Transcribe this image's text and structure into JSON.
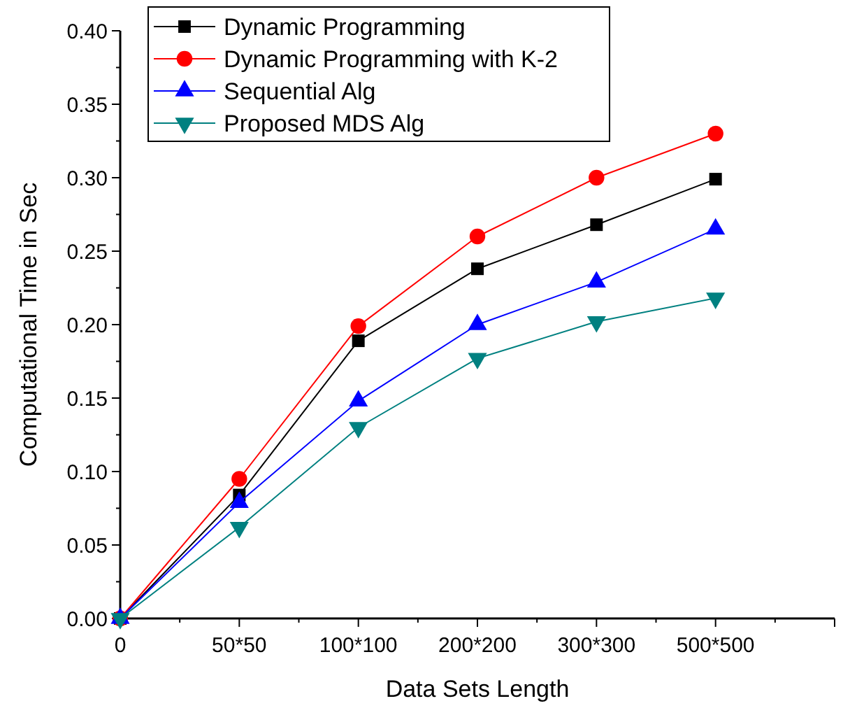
{
  "chart_data": {
    "type": "line",
    "xlabel": "Data Sets Length",
    "ylabel": "Computational Time in Sec",
    "categories": [
      "0",
      "50*50",
      "100*100",
      "200*200",
      "300*300",
      "500*500",
      null
    ],
    "series": [
      {
        "name": "Dynamic Programming",
        "color": "#000000",
        "marker": "square",
        "values": [
          0,
          0.084,
          0.189,
          0.238,
          0.268,
          0.299,
          null
        ]
      },
      {
        "name": "Dynamic Programming with K-2",
        "color": "#ff0000",
        "marker": "circle",
        "values": [
          0,
          0.095,
          0.199,
          0.26,
          0.3,
          0.33,
          null
        ]
      },
      {
        "name": "Sequential Alg",
        "color": "#0000ff",
        "marker": "triangle",
        "values": [
          0,
          0.079,
          0.148,
          0.2,
          0.229,
          0.265,
          null
        ]
      },
      {
        "name": "Proposed MDS Alg",
        "color": "#008080",
        "marker": "triangle-down",
        "values": [
          0,
          0.062,
          0.13,
          0.177,
          0.202,
          0.218,
          null
        ]
      }
    ],
    "ylim": [
      0,
      0.4
    ],
    "yticks": [
      {
        "value": 0,
        "label": "0.00"
      },
      {
        "value": 0.025,
        "label": null
      },
      {
        "value": 0.05,
        "label": "0.05"
      },
      {
        "value": 0.075,
        "label": null
      },
      {
        "value": 0.1,
        "label": "0.10"
      },
      {
        "value": 0.125,
        "label": null
      },
      {
        "value": 0.15,
        "label": "0.15"
      },
      {
        "value": 0.175,
        "label": null
      },
      {
        "value": 0.2,
        "label": "0.20"
      },
      {
        "value": 0.225,
        "label": null
      },
      {
        "value": 0.25,
        "label": "0.25"
      },
      {
        "value": 0.275,
        "label": null
      },
      {
        "value": 0.3,
        "label": "0.30"
      },
      {
        "value": 0.325,
        "label": null
      },
      {
        "value": 0.35,
        "label": "0.35"
      },
      {
        "value": 0.375,
        "label": null
      },
      {
        "value": 0.4,
        "label": "0.40"
      }
    ],
    "legend": "top left",
    "grid": false,
    "line_style": "solid"
  }
}
